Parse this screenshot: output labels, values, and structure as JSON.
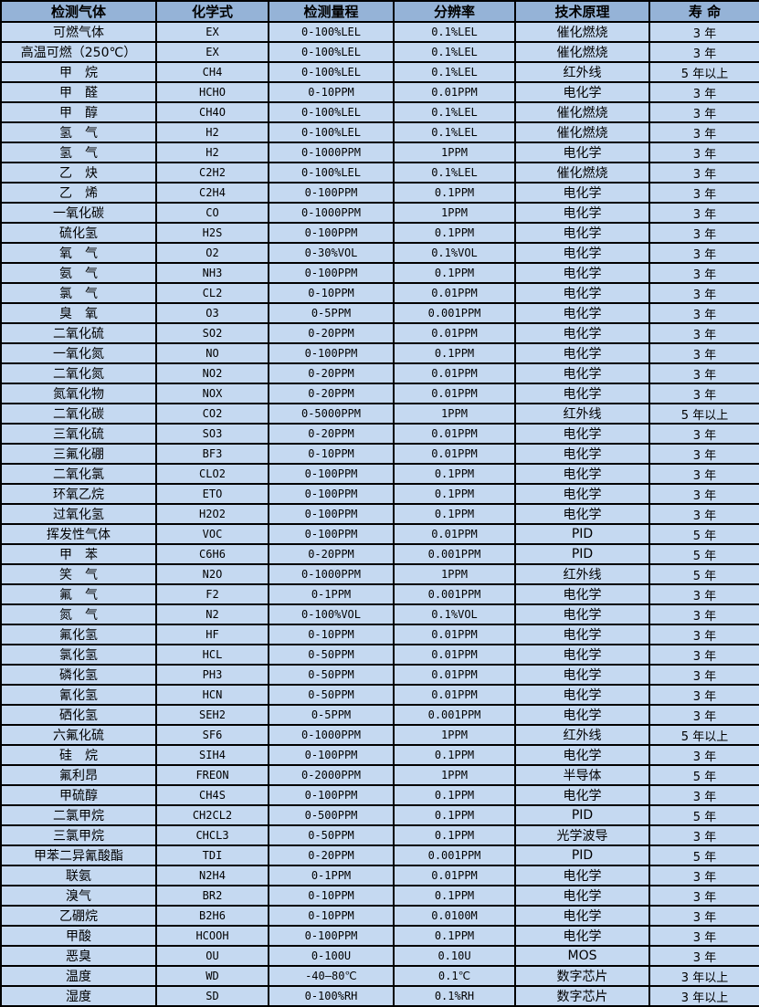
{
  "colors": {
    "header_bg": "#95b3d7",
    "row_bg": "#c5d9f1",
    "border": "#000000",
    "text": "#000000"
  },
  "table": {
    "headers": [
      "检测气体",
      "化学式",
      "检测量程",
      "分辨率",
      "技术原理",
      "寿 命"
    ],
    "rows": [
      [
        "可燃气体",
        "EX",
        "0-100%LEL",
        "0.1%LEL",
        "催化燃烧",
        "3 年"
      ],
      [
        "高温可燃（250℃）",
        "EX",
        "0-100%LEL",
        "0.1%LEL",
        "催化燃烧",
        "3 年"
      ],
      [
        "甲　烷",
        "CH4",
        "0-100%LEL",
        "0.1%LEL",
        "红外线",
        "5 年以上"
      ],
      [
        "甲　醛",
        "HCHO",
        "0-10PPM",
        "0.01PPM",
        "电化学",
        "3 年"
      ],
      [
        "甲　醇",
        "CH4O",
        "0-100%LEL",
        "0.1%LEL",
        "催化燃烧",
        "3 年"
      ],
      [
        "氢　气",
        "H2",
        "0-100%LEL",
        "0.1%LEL",
        "催化燃烧",
        "3 年"
      ],
      [
        "氢　气",
        "H2",
        "0-1000PPM",
        "1PPM",
        "电化学",
        "3 年"
      ],
      [
        "乙　炔",
        "C2H2",
        "0-100%LEL",
        "0.1%LEL",
        "催化燃烧",
        "3 年"
      ],
      [
        "乙　烯",
        "C2H4",
        "0-100PPM",
        "0.1PPM",
        "电化学",
        "3 年"
      ],
      [
        "一氧化碳",
        "CO",
        "0-1000PPM",
        "1PPM",
        "电化学",
        "3 年"
      ],
      [
        "硫化氢",
        "H2S",
        "0-100PPM",
        "0.1PPM",
        "电化学",
        "3 年"
      ],
      [
        "氧　气",
        "O2",
        "0-30%VOL",
        "0.1%VOL",
        "电化学",
        "3 年"
      ],
      [
        "氨　气",
        "NH3",
        "0-100PPM",
        "0.1PPM",
        "电化学",
        "3 年"
      ],
      [
        "氯　气",
        "CL2",
        "0-10PPM",
        "0.01PPM",
        "电化学",
        "3 年"
      ],
      [
        "臭　氧",
        "O3",
        "0-5PPM",
        "0.001PPM",
        "电化学",
        "3 年"
      ],
      [
        "二氧化硫",
        "SO2",
        "0-20PPM",
        "0.01PPM",
        "电化学",
        "3 年"
      ],
      [
        "一氧化氮",
        "NO",
        "0-100PPM",
        "0.1PPM",
        "电化学",
        "3 年"
      ],
      [
        "二氧化氮",
        "NO2",
        "0-20PPM",
        "0.01PPM",
        "电化学",
        "3 年"
      ],
      [
        "氮氧化物",
        "NOX",
        "0-20PPM",
        "0.01PPM",
        "电化学",
        "3 年"
      ],
      [
        "二氧化碳",
        "CO2",
        "0-5000PPM",
        "1PPM",
        "红外线",
        "5 年以上"
      ],
      [
        "三氧化硫",
        "SO3",
        "0-20PPM",
        "0.01PPM",
        "电化学",
        "3 年"
      ],
      [
        "三氟化硼",
        "BF3",
        "0-10PPM",
        "0.01PPM",
        "电化学",
        "3 年"
      ],
      [
        "二氧化氯",
        "CLO2",
        "0-100PPM",
        "0.1PPM",
        "电化学",
        "3 年"
      ],
      [
        "环氧乙烷",
        "ETO",
        "0-100PPM",
        "0.1PPM",
        "电化学",
        "3 年"
      ],
      [
        "过氧化氢",
        "H2O2",
        "0-100PPM",
        "0.1PPM",
        "电化学",
        "3 年"
      ],
      [
        "挥发性气体",
        "VOC",
        "0-100PPM",
        "0.01PPM",
        "PID",
        "5 年"
      ],
      [
        "甲　苯",
        "C6H6",
        "0-20PPM",
        "0.001PPM",
        "PID",
        "5 年"
      ],
      [
        "笑　气",
        "N2O",
        "0-1000PPM",
        "1PPM",
        "红外线",
        "5 年"
      ],
      [
        "氟　气",
        "F2",
        "0-1PPM",
        "0.001PPM",
        "电化学",
        "3 年"
      ],
      [
        "氮　气",
        "N2",
        "0-100%VOL",
        "0.1%VOL",
        "电化学",
        "3 年"
      ],
      [
        "氟化氢",
        "HF",
        "0-10PPM",
        "0.01PPM",
        "电化学",
        "3 年"
      ],
      [
        "氯化氢",
        "HCL",
        "0-50PPM",
        "0.01PPM",
        "电化学",
        "3 年"
      ],
      [
        "磷化氢",
        "PH3",
        "0-50PPM",
        "0.01PPM",
        "电化学",
        "3 年"
      ],
      [
        "氰化氢",
        "HCN",
        "0-50PPM",
        "0.01PPM",
        "电化学",
        "3 年"
      ],
      [
        "硒化氢",
        "SEH2",
        "0-5PPM",
        "0.001PPM",
        "电化学",
        "3 年"
      ],
      [
        "六氟化硫",
        "SF6",
        "0-1000PPM",
        "1PPM",
        "红外线",
        "5 年以上"
      ],
      [
        "硅　烷",
        "SIH4",
        "0-100PPM",
        "0.1PPM",
        "电化学",
        "3 年"
      ],
      [
        "氟利昂",
        "FREON",
        "0-2000PPM",
        "1PPM",
        "半导体",
        "5 年"
      ],
      [
        "甲硫醇",
        "CH4S",
        "0-100PPM",
        "0.1PPM",
        "电化学",
        "3 年"
      ],
      [
        "二氯甲烷",
        "CH2CL2",
        "0-500PPM",
        "0.1PPM",
        "PID",
        "5 年"
      ],
      [
        "三氯甲烷",
        "CHCL3",
        "0-50PPM",
        "0.1PPM",
        "光学波导",
        "3 年"
      ],
      [
        "甲苯二异氰酸酯",
        "TDI",
        "0-20PPM",
        "0.001PPM",
        "PID",
        "5 年"
      ],
      [
        "联氨",
        "N2H4",
        "0-1PPM",
        "0.01PPM",
        "电化学",
        "3 年"
      ],
      [
        "溴气",
        "BR2",
        "0-10PPM",
        "0.1PPM",
        "电化学",
        "3 年"
      ],
      [
        "乙硼烷",
        "B2H6",
        "0-10PPM",
        "0.0100M",
        "电化学",
        "3 年"
      ],
      [
        "甲酸",
        "HCOOH",
        "0-100PPM",
        "0.1PPM",
        "电化学",
        "3 年"
      ],
      [
        "恶臭",
        "OU",
        "0-100U",
        "0.10U",
        "MOS",
        "3 年"
      ],
      [
        "温度",
        "WD",
        "-40—80℃",
        "0.1℃",
        "数字芯片",
        "3 年以上"
      ],
      [
        "湿度",
        "SD",
        "0-100%RH",
        "0.1%RH",
        "数字芯片",
        "3 年以上"
      ]
    ]
  }
}
